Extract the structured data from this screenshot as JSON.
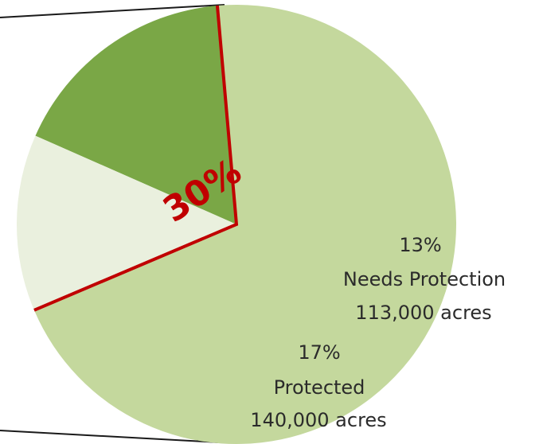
{
  "chart_data": {
    "type": "pie",
    "title": "",
    "slices": [
      {
        "label": "Protected",
        "percent": 17,
        "value_text": "17%",
        "acres_text": "140,000 acres",
        "color": "#7aa746"
      },
      {
        "label": "Needs Protection",
        "percent": 13,
        "value_text": "13%",
        "acres_text": "113,000 acres",
        "color": "#eaf0de"
      },
      {
        "label": "",
        "percent": 70,
        "value_text": "",
        "acres_text": "",
        "color": "#c4d89d"
      }
    ],
    "callout": {
      "text": "30%",
      "color": "#c00000"
    },
    "highlight_outline_color": "#c00000",
    "connector_color": "#1a1a1a"
  }
}
